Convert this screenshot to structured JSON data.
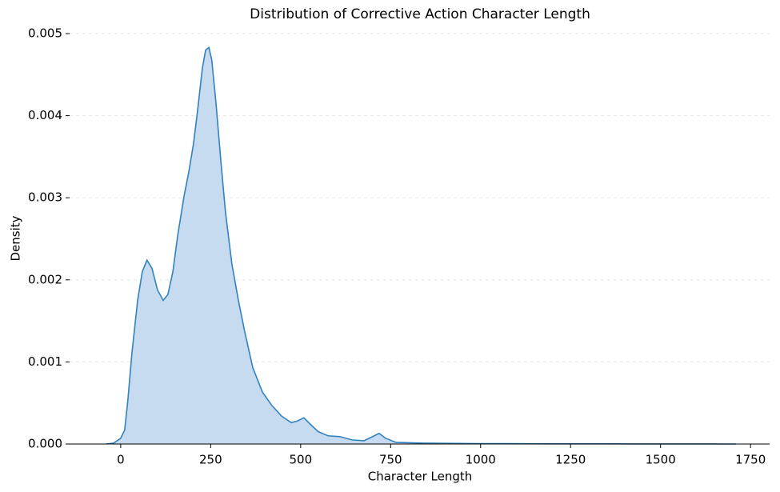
{
  "chart_data": {
    "type": "area",
    "title": "Distribution of Corrective Action Character Length",
    "x_label": "Character Length",
    "y_label": "Density",
    "x": [
      -40,
      -20,
      0,
      11,
      20,
      31,
      47,
      60,
      73,
      87,
      102,
      118,
      131,
      145,
      158,
      176,
      189,
      202,
      213,
      227,
      236,
      245,
      253,
      265,
      278,
      291,
      309,
      327,
      345,
      367,
      394,
      420,
      447,
      474,
      491,
      509,
      527,
      549,
      576,
      609,
      643,
      676,
      700,
      718,
      736,
      765,
      843,
      998,
      1200,
      1450,
      1710
    ],
    "values": [
      0,
      1e-05,
      7e-05,
      0.00017,
      0.00054,
      0.0011,
      0.00175,
      0.0021,
      0.00224,
      0.00214,
      0.00188,
      0.00175,
      0.00182,
      0.0021,
      0.00253,
      0.00302,
      0.00331,
      0.00365,
      0.00404,
      0.00458,
      0.0048,
      0.00483,
      0.00468,
      0.00414,
      0.00346,
      0.00283,
      0.00219,
      0.00175,
      0.00136,
      0.00093,
      0.00063,
      0.00047,
      0.00034,
      0.00026,
      0.00028,
      0.00032,
      0.00024,
      0.00015,
      0.0001,
      9e-05,
      5e-05,
      4e-05,
      9e-05,
      0.00013,
      7e-05,
      2e-05,
      1e-05,
      5e-06,
      2e-06,
      1e-06,
      0
    ],
    "color": "#3182bd",
    "fill_color": "#c6dbef",
    "xlim": [
      -142,
      1803
    ],
    "ylim": [
      0,
      0.005
    ],
    "xticks": [
      0,
      250,
      500,
      750,
      1000,
      1250,
      1500,
      1750
    ],
    "yticks": [
      {
        "value": 0,
        "label": "0.000"
      },
      {
        "value": 0.001,
        "label": "0.001"
      },
      {
        "value": 0.002,
        "label": "0.002"
      },
      {
        "value": 0.003,
        "label": "0.003"
      },
      {
        "value": 0.004,
        "label": "0.004"
      },
      {
        "value": 0.005,
        "label": "0.005"
      }
    ],
    "grid": true
  }
}
